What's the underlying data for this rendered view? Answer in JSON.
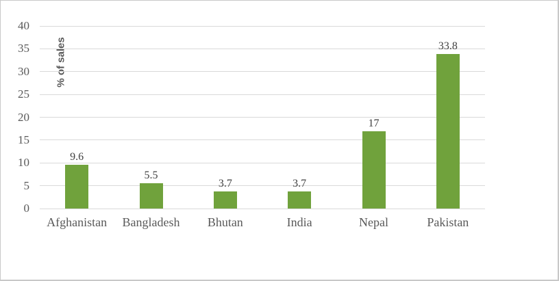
{
  "chart_data": {
    "type": "bar",
    "categories": [
      "Afghanistan",
      "Bangladesh",
      "Bhutan",
      "India",
      "Nepal",
      "Pakistan"
    ],
    "values": [
      9.6,
      5.5,
      3.7,
      3.7,
      17,
      33.8
    ],
    "value_labels": [
      "9.6",
      "5.5",
      "3.7",
      "3.7",
      "17",
      "33.8"
    ],
    "title": "",
    "xlabel": "",
    "ylabel": "% of sales",
    "ylim": [
      0,
      40
    ],
    "yticks": [
      0,
      5,
      10,
      15,
      20,
      25,
      30,
      35,
      40
    ],
    "grid": true,
    "legend": false,
    "colors": {
      "bar": "#70A23C",
      "gridline": "#D9D9D9",
      "tick_label": "#595959",
      "category_label": "#595959",
      "value_label": "#404040",
      "axis_title": "#595959",
      "frame_border": "#C8C8C8",
      "background": "#FFFFFF"
    }
  }
}
